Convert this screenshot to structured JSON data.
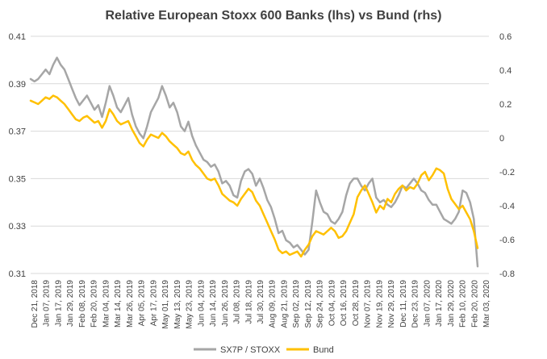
{
  "chart_data": {
    "type": "line",
    "title": "Relative European Stoxx 600 Banks (lhs) vs Bund (rhs)",
    "xlabel": "",
    "ylabel_left": "",
    "ylabel_right": "",
    "grid": true,
    "legend_position": "bottom",
    "y_left": {
      "min": 0.31,
      "max": 0.41,
      "ticks": [
        "0.31",
        "0.33",
        "0.35",
        "0.37",
        "0.39",
        "0.41"
      ]
    },
    "y_right": {
      "min": -0.8,
      "max": 0.6,
      "ticks": [
        "-0.8",
        "-0.6",
        "-0.4",
        "-0.2",
        "0",
        "0.2",
        "0.4",
        "0.6"
      ]
    },
    "x_tick_labels": [
      "Dec 21, 2018",
      "Jan 07, 2019",
      "Jan 17, 2019",
      "Jan 29, 2019",
      "Feb 08, 2019",
      "Feb 20, 2019",
      "Mar 04, 2019",
      "Mar 14, 2019",
      "Mar 26, 2019",
      "Apr 05, 2019",
      "Apr 17, 2019",
      "May 01, 2019",
      "May 13, 2019",
      "May 23, 2019",
      "Jun 04, 2019",
      "Jun 14, 2019",
      "Jun 26, 2019",
      "Jul 08, 2019",
      "Jul 18, 2019",
      "Jul 30, 2019",
      "Aug 09, 2019",
      "Aug 21, 2019",
      "Sep 02, 2019",
      "Sep 12, 2019",
      "Sep 24, 2019",
      "Oct 04, 2019",
      "Oct 16, 2019",
      "Oct 28, 2019",
      "Nov 07, 2019",
      "Nov 19, 2019",
      "Nov 29, 2019",
      "Dec 11, 2019",
      "Dec 23, 2019",
      "Jan 07, 2020",
      "Jan 17, 2020",
      "Jan 29, 2020",
      "Feb 10, 2020",
      "Feb 20, 2020",
      "Mar 03, 2020"
    ],
    "series": [
      {
        "name": "SX7P / STOXX",
        "axis": "left",
        "color": "#a6a6a6",
        "values": [
          0.392,
          0.391,
          0.392,
          0.394,
          0.396,
          0.394,
          0.398,
          0.401,
          0.398,
          0.396,
          0.392,
          0.388,
          0.384,
          0.381,
          0.383,
          0.385,
          0.382,
          0.379,
          0.381,
          0.376,
          0.382,
          0.389,
          0.385,
          0.38,
          0.378,
          0.381,
          0.384,
          0.377,
          0.372,
          0.369,
          0.367,
          0.372,
          0.378,
          0.381,
          0.384,
          0.389,
          0.385,
          0.38,
          0.382,
          0.378,
          0.372,
          0.37,
          0.374,
          0.368,
          0.364,
          0.361,
          0.358,
          0.357,
          0.355,
          0.356,
          0.353,
          0.348,
          0.349,
          0.347,
          0.343,
          0.342,
          0.349,
          0.353,
          0.354,
          0.352,
          0.347,
          0.35,
          0.346,
          0.341,
          0.338,
          0.333,
          0.327,
          0.328,
          0.324,
          0.323,
          0.321,
          0.322,
          0.32,
          0.318,
          0.32,
          0.332,
          0.345,
          0.34,
          0.336,
          0.335,
          0.332,
          0.331,
          0.333,
          0.336,
          0.343,
          0.348,
          0.35,
          0.35,
          0.347,
          0.345,
          0.348,
          0.35,
          0.342,
          0.34,
          0.341,
          0.339,
          0.338,
          0.34,
          0.343,
          0.347,
          0.346,
          0.348,
          0.35,
          0.348,
          0.345,
          0.344,
          0.341,
          0.339,
          0.339,
          0.336,
          0.333,
          0.332,
          0.331,
          0.333,
          0.336,
          0.345,
          0.344,
          0.34,
          0.333,
          0.313
        ]
      },
      {
        "name": "Bund",
        "axis": "right",
        "color": "#ffc000",
        "values": [
          0.22,
          0.21,
          0.2,
          0.22,
          0.24,
          0.23,
          0.25,
          0.24,
          0.22,
          0.2,
          0.17,
          0.14,
          0.11,
          0.1,
          0.12,
          0.13,
          0.11,
          0.09,
          0.1,
          0.06,
          0.1,
          0.17,
          0.14,
          0.1,
          0.08,
          0.09,
          0.1,
          0.05,
          0.01,
          -0.03,
          -0.05,
          -0.01,
          0.02,
          0.01,
          0.0,
          0.03,
          0.01,
          -0.02,
          -0.04,
          -0.06,
          -0.09,
          -0.1,
          -0.08,
          -0.13,
          -0.16,
          -0.18,
          -0.21,
          -0.24,
          -0.25,
          -0.24,
          -0.28,
          -0.33,
          -0.35,
          -0.37,
          -0.38,
          -0.4,
          -0.36,
          -0.33,
          -0.3,
          -0.32,
          -0.37,
          -0.4,
          -0.45,
          -0.5,
          -0.55,
          -0.6,
          -0.66,
          -0.68,
          -0.67,
          -0.69,
          -0.68,
          -0.67,
          -0.7,
          -0.66,
          -0.63,
          -0.58,
          -0.55,
          -0.56,
          -0.57,
          -0.55,
          -0.53,
          -0.55,
          -0.59,
          -0.58,
          -0.55,
          -0.5,
          -0.45,
          -0.35,
          -0.31,
          -0.28,
          -0.33,
          -0.38,
          -0.44,
          -0.4,
          -0.42,
          -0.36,
          -0.38,
          -0.33,
          -0.3,
          -0.28,
          -0.31,
          -0.29,
          -0.3,
          -0.27,
          -0.22,
          -0.2,
          -0.25,
          -0.22,
          -0.18,
          -0.19,
          -0.21,
          -0.3,
          -0.36,
          -0.39,
          -0.42,
          -0.4,
          -0.44,
          -0.48,
          -0.55,
          -0.65
        ]
      }
    ]
  }
}
